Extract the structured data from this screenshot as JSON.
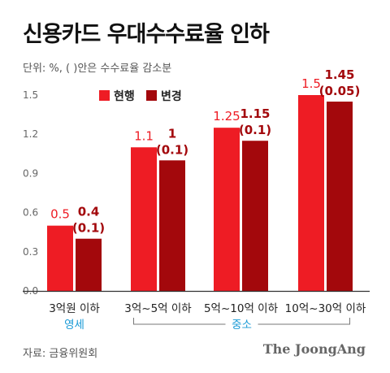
{
  "title": "신용카드 우대수수료율 인하",
  "subtitle": "단위: %, ( )안은 수수료율 감소분",
  "source": "자료: 금융위원회",
  "brand": "The JoongAng",
  "colors": {
    "current": "#ee1c24",
    "changed": "#a3080c",
    "sub_label": "#1a9ad6",
    "axis": "#333333",
    "grid": "#dddddd"
  },
  "chart_data": {
    "type": "bar",
    "categories": [
      "3억원 이하",
      "3억~5억 이하",
      "5억~10억 이하",
      "10억~30억 이하"
    ],
    "series": [
      {
        "name": "현행",
        "values": [
          0.5,
          1.1,
          1.25,
          1.5
        ],
        "labels": [
          "0.5",
          "1.1",
          "1.25",
          "1.5"
        ]
      },
      {
        "name": "변경",
        "values": [
          0.4,
          1.0,
          1.15,
          1.45
        ],
        "labels": [
          "0.4",
          "1",
          "1.15",
          "1.45"
        ]
      }
    ],
    "reductions": [
      "(0.1)",
      "(0.1)",
      "(0.1)",
      "(0.05)"
    ],
    "yticks": [
      "1.5",
      "1.2",
      "0.9",
      "0.6",
      "0.3",
      "0.0"
    ],
    "ylim": [
      0,
      1.5
    ],
    "grid": false,
    "legend": "top-left",
    "groups": [
      {
        "label": "영세",
        "from": 0,
        "to": 0
      },
      {
        "label": "중소",
        "from": 1,
        "to": 3
      }
    ]
  }
}
